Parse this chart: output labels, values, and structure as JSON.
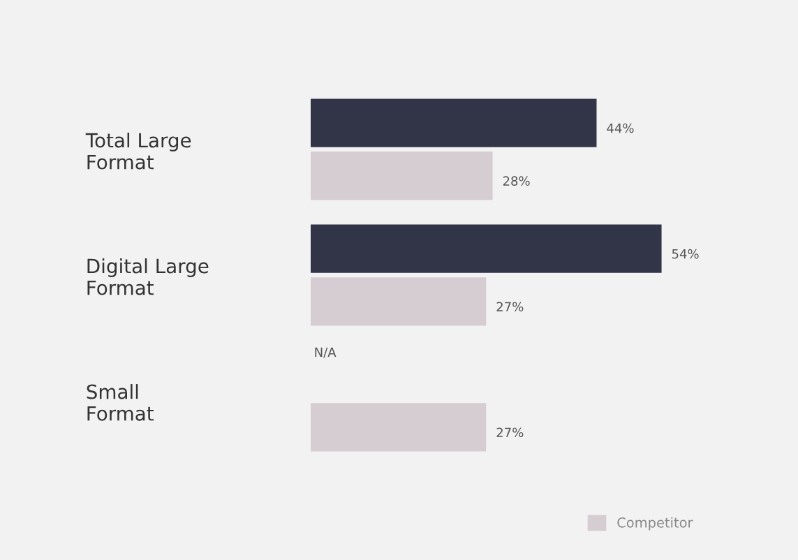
{
  "chart_data": {
    "type": "bar",
    "orientation": "horizontal",
    "categories": [
      "Total Large\nFormat",
      "Digital Large\nFormat",
      "Small\nFormat"
    ],
    "series": [
      {
        "color": "#323548",
        "values": [
          44,
          54,
          null
        ],
        "value_labels": [
          "44%",
          "54%",
          "N/A"
        ]
      },
      {
        "name": "Competitor",
        "color": "#d5cdd1",
        "values": [
          28,
          27,
          27
        ],
        "value_labels": [
          "28%",
          "27%",
          "27%"
        ]
      }
    ],
    "xlim": [
      0,
      75
    ],
    "tick_labels": "y",
    "grid": false,
    "legend": "bottom right"
  }
}
